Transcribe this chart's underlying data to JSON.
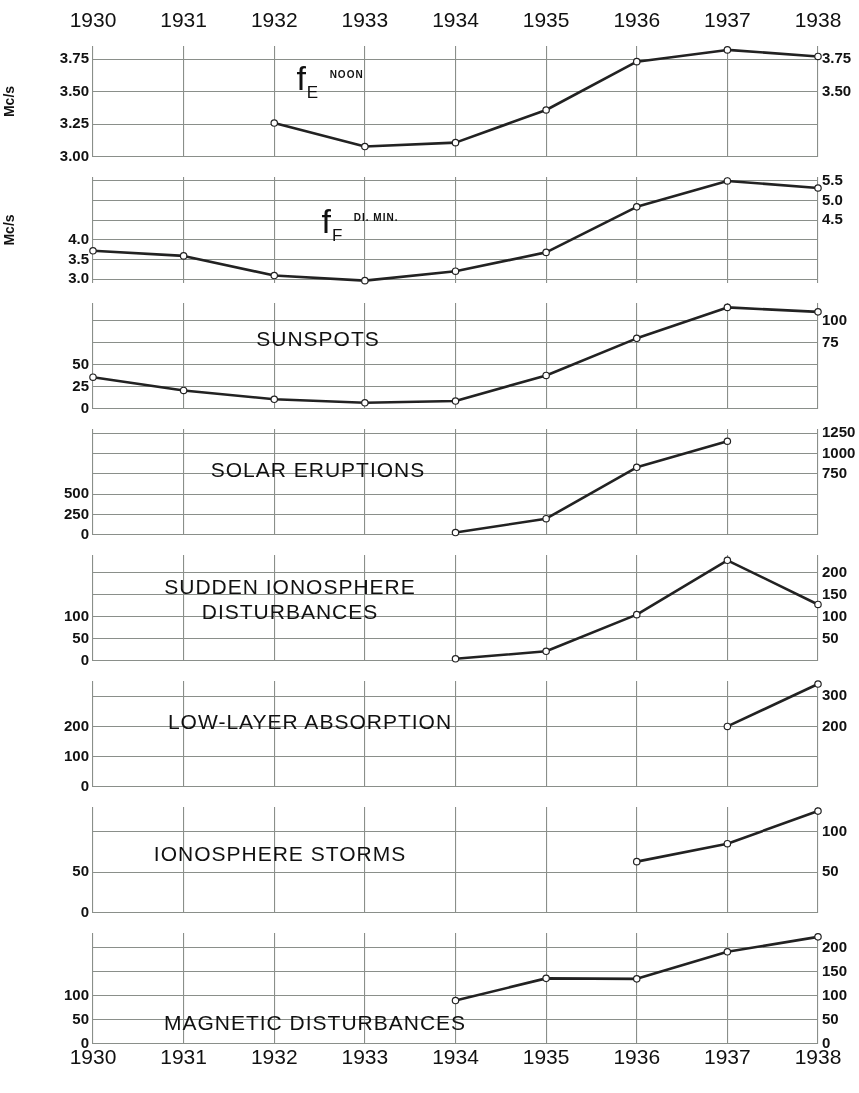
{
  "chart_data": [
    {
      "type": "line",
      "title": "f$_{E}$ $^{NOON}$",
      "ylabel": "Mc/s",
      "series": [
        {
          "color": "#222222",
          "x": [
            1932,
            1933,
            1934,
            1935,
            1936,
            1937,
            1938
          ],
          "values": [
            3.26,
            3.08,
            3.11,
            3.36,
            3.73,
            3.82,
            3.77
          ]
        }
      ],
      "xlim": [
        1930,
        1938
      ],
      "xticks": [
        1930,
        1931,
        1932,
        1933,
        1934,
        1935,
        1936,
        1937,
        1938
      ],
      "x2lim": [
        1930,
        1938
      ],
      "x2ticks": [
        1930,
        1931,
        1932,
        1933,
        1934,
        1935,
        1936,
        1937,
        1938
      ],
      "ylim": [
        3.0,
        3.85
      ],
      "yticks": [
        {
          "value": 3,
          "label": "3.00"
        },
        3.25,
        {
          "value": 3.5,
          "label": "3.50"
        },
        3.75
      ],
      "y2lim": [
        3.0,
        3.85
      ],
      "y2ticks": [
        {
          "value": 3.5,
          "label": "3.50"
        },
        3.75
      ],
      "grid": true,
      "marker": "circle",
      "tick_labels": "y"
    },
    {
      "type": "line",
      "title": "f$_{F}$ $^{DI. MIN.}$",
      "ylabel": "Mc/s",
      "series": [
        {
          "color": "#222222",
          "x": [
            1930,
            1931,
            1932,
            1933,
            1934,
            1935,
            1936,
            1937,
            1938
          ],
          "values": [
            3.72,
            3.59,
            3.09,
            2.96,
            3.2,
            3.68,
            4.84,
            5.5,
            5.32
          ]
        }
      ],
      "xlim": [
        1930,
        1938
      ],
      "xticks": [
        1930,
        1931,
        1932,
        1933,
        1934,
        1935,
        1936,
        1937,
        1938
      ],
      "ylim": [
        2.9,
        5.6
      ],
      "yticks": [
        {
          "value": 3,
          "label": "3.0"
        },
        3.5,
        {
          "value": 4,
          "label": "4.0"
        }
      ],
      "y2lim": [
        2.9,
        5.6
      ],
      "y2ticks": [
        4.5,
        {
          "value": 5,
          "label": "5.0"
        },
        5.5
      ],
      "grid": true,
      "marker": "circle",
      "tick_labels": "y"
    },
    {
      "type": "line",
      "title": "SUNSPOTS",
      "series": [
        {
          "color": "#222222",
          "x": [
            1930,
            1931,
            1932,
            1933,
            1934,
            1935,
            1936,
            1937,
            1938
          ],
          "values": [
            36,
            21,
            11,
            7,
            9,
            38,
            80,
            115,
            110
          ]
        }
      ],
      "xlim": [
        1930,
        1938
      ],
      "xticks": [
        1930,
        1931,
        1932,
        1933,
        1934,
        1935,
        1936,
        1937,
        1938
      ],
      "ylim": [
        0,
        120
      ],
      "yticks": [
        0,
        25,
        50
      ],
      "y2lim": [
        0,
        120
      ],
      "y2ticks": [
        75,
        100
      ],
      "grid": true,
      "marker": "circle",
      "tick_labels": "y"
    },
    {
      "type": "line",
      "title": "SOLAR ERUPTIONS",
      "series": [
        {
          "color": "#222222",
          "x": [
            1934,
            1935,
            1936,
            1937
          ],
          "values": [
            30,
            200,
            830,
            1150
          ]
        }
      ],
      "xlim": [
        1930,
        1938
      ],
      "xticks": [
        1930,
        1931,
        1932,
        1933,
        1934,
        1935,
        1936,
        1937,
        1938
      ],
      "ylim": [
        0,
        1300
      ],
      "yticks": [
        0,
        250,
        500
      ],
      "y2lim": [
        0,
        1300
      ],
      "y2ticks": [
        750,
        1000,
        1250
      ],
      "grid": true,
      "marker": "circle",
      "tick_labels": "y"
    },
    {
      "type": "line",
      "title": "SUDDEN IONOSPHERE DISTURBANCES",
      "series": [
        {
          "color": "#222222",
          "x": [
            1934,
            1935,
            1936,
            1937,
            1938
          ],
          "values": [
            5,
            22,
            105,
            228,
            128
          ]
        }
      ],
      "xlim": [
        1930,
        1938
      ],
      "xticks": [
        1930,
        1931,
        1932,
        1933,
        1934,
        1935,
        1936,
        1937,
        1938
      ],
      "ylim": [
        0,
        240
      ],
      "yticks": [
        0,
        50,
        100
      ],
      "y2lim": [
        0,
        240
      ],
      "y2ticks": [
        50,
        100,
        150,
        200
      ],
      "grid": true,
      "marker": "circle",
      "tick_labels": "y"
    },
    {
      "type": "line",
      "title": "LOW-LAYER ABSORPTION",
      "series": [
        {
          "color": "#222222",
          "x": [
            1937,
            1938
          ],
          "values": [
            200,
            340
          ]
        }
      ],
      "xlim": [
        1930,
        1938
      ],
      "xticks": [
        1930,
        1931,
        1932,
        1933,
        1934,
        1935,
        1936,
        1937,
        1938
      ],
      "ylim": [
        0,
        350
      ],
      "yticks": [
        0,
        100,
        200
      ],
      "y2lim": [
        0,
        350
      ],
      "y2ticks": [
        200,
        300
      ],
      "grid": true,
      "marker": "circle",
      "tick_labels": "y"
    },
    {
      "type": "line",
      "title": "IONOSPHERE STORMS",
      "series": [
        {
          "color": "#222222",
          "x": [
            1936,
            1937,
            1938
          ],
          "values": [
            63,
            85,
            125
          ]
        }
      ],
      "xlim": [
        1930,
        1938
      ],
      "xticks": [
        1930,
        1931,
        1932,
        1933,
        1934,
        1935,
        1936,
        1937,
        1938
      ],
      "ylim": [
        0,
        130
      ],
      "yticks": [
        0,
        50
      ],
      "y2lim": [
        0,
        130
      ],
      "y2ticks": [
        50,
        100
      ],
      "grid": true,
      "marker": "circle",
      "tick_labels": "y"
    },
    {
      "type": "line",
      "title": "MAGNETIC DISTURBANCES",
      "series": [
        {
          "color": "#222222",
          "x": [
            1934,
            1935,
            1936,
            1937,
            1938
          ],
          "values": [
            90,
            136,
            135,
            191,
            222
          ]
        }
      ],
      "xlim": [
        1930,
        1938
      ],
      "xticks": [
        1930,
        1931,
        1932,
        1933,
        1934,
        1935,
        1936,
        1937,
        1938
      ],
      "ylim": [
        0,
        230
      ],
      "yticks": [
        0,
        50,
        100
      ],
      "y2lim": [
        0,
        230
      ],
      "y2ticks": [
        0,
        50,
        100,
        150,
        200
      ],
      "grid": true,
      "marker": "circle"
    }
  ]
}
